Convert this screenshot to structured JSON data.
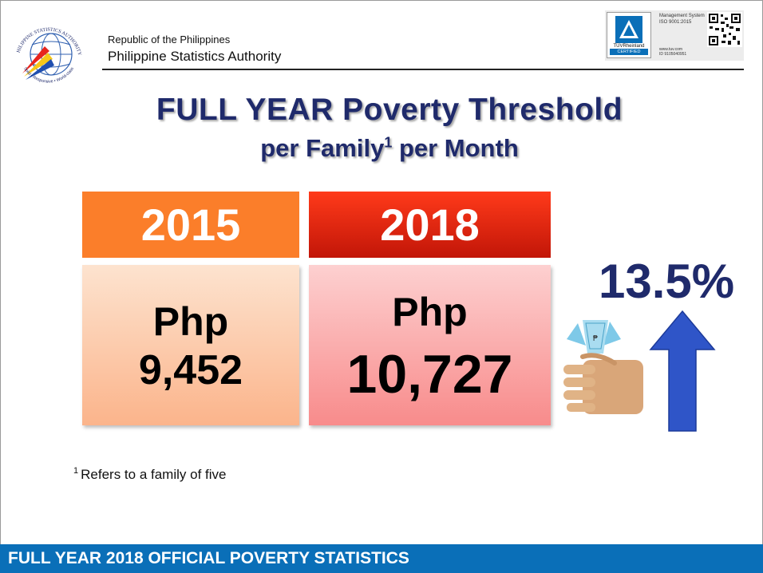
{
  "header": {
    "org_line1": "Republic of the Philippines",
    "org_line2": "Philippine Statistics Authority",
    "logo_text_top": "PHILIPPINE STATISTICS AUTHORITY",
    "logo_text_bottom": "Solid • Responsive • World-class",
    "cert": {
      "brand": "TÜVRheinland",
      "badge": "CERTIFIED",
      "management": "Management System",
      "iso": "ISO 9001:2015",
      "web": "www.tuv.com",
      "id": "ID 9105040951"
    }
  },
  "slide": {
    "title_line1": "FULL YEAR Poverty Threshold",
    "title_line2_a": "per Family",
    "title_line2_sup": "1",
    "title_line2_b": " per Month",
    "years": [
      {
        "year": "2015",
        "currency": "Php",
        "amount": "9,452"
      },
      {
        "year": "2018",
        "currency": "Php",
        "amount": "10,727"
      }
    ],
    "increase": "13.5%",
    "footnote_mark": "1",
    "footnote": "Refers to a family of five"
  },
  "footer": {
    "banner": "FULL YEAR 2018 OFFICIAL POVERTY STATISTICS"
  },
  "colors": {
    "title": "#1f2a6b",
    "year_2015": "#fb7e2a",
    "year_2018": "#e0200f",
    "footer_bar": "#0a6fb8",
    "arrow": "#2f55c8"
  }
}
